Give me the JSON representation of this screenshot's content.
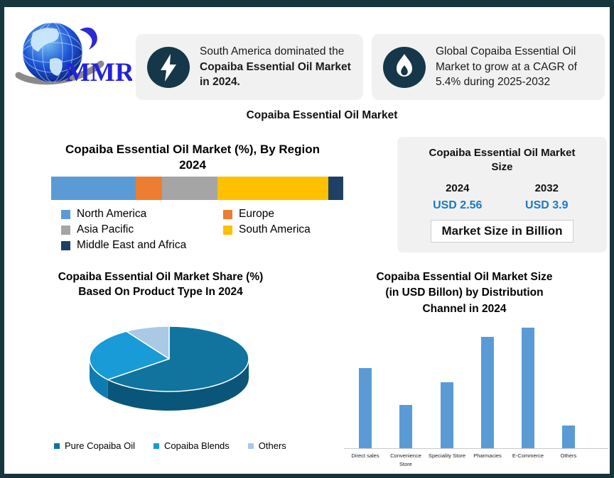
{
  "brand": {
    "name": "MMR"
  },
  "callouts": [
    {
      "icon": "lightning-icon",
      "text_regular": "South America dominated the ",
      "text_bold": "Copaiba Essential Oil Market in 2024."
    },
    {
      "icon": "flame-icon",
      "text": "Global Copaiba Essential Oil Market to grow at a CAGR of 5.4% during 2025-2032"
    }
  ],
  "main_title": "Copaiba Essential Oil Market",
  "market_size_panel": {
    "title_line1": "Copaiba Essential Oil Market",
    "title_line2": "Size",
    "col1_year": "2024",
    "col2_year": "2032",
    "col1_value": "USD 2.56",
    "col2_value": "USD 3.9",
    "note": "Market Size in Billion",
    "value_color": "#1b7ac1"
  },
  "section_titles": {
    "region": [
      "Copaiba Essential Oil Market (%), By Region",
      "2024"
    ],
    "pie": [
      "Copaiba Essential Oil Market Share (%)",
      "Based On Product Type In 2024"
    ],
    "bar": [
      "Copaiba Essential Oil Market Size",
      "(in USD Billon)  by Distribution",
      "Channel in 2024"
    ]
  },
  "chart_data": [
    {
      "type": "stacked-bar-horizontal",
      "title": "Copaiba Essential Oil Market (%), By Region 2024",
      "unit": "%",
      "segments": [
        {
          "label": "North America",
          "value": 29,
          "color": "#5B9BD5"
        },
        {
          "label": "Europe",
          "value": 9,
          "color": "#ED7D31"
        },
        {
          "label": "Asia Pacific",
          "value": 19,
          "color": "#A5A5A5"
        },
        {
          "label": "South America",
          "value": 38,
          "color": "#FFC000"
        },
        {
          "label": "Middle East and Africa",
          "value": 5,
          "color": "#1F4064"
        }
      ]
    },
    {
      "type": "pie",
      "style": "3d",
      "title": "Copaiba Essential Oil Market Share (%) Based On Product Type In 2024",
      "start_angle_deg": 0,
      "direction": "clockwise",
      "slices": [
        {
          "label": "Pure Copaiba Oil",
          "value": 64,
          "color": "#10749F",
          "side_color": "#0A567A"
        },
        {
          "label": "Copaiba Blends",
          "value": 27,
          "color": "#189BD7",
          "side_color": "#0F7BB0"
        },
        {
          "label": "Others",
          "value": 9,
          "color": "#A9C9E5",
          "side_color": "#84A8C8"
        }
      ]
    },
    {
      "type": "bar",
      "title": "Copaiba Essential Oil Market Size (in USD Billon)  by Distribution Channel in 2024",
      "categories": [
        "Direct sales",
        "Convenience Store",
        "Speciality Store",
        "Pharmacies",
        "E-Commerce",
        "Others"
      ],
      "values": [
        0.46,
        0.25,
        0.38,
        0.64,
        0.69,
        0.13
      ],
      "bar_color": "#5B9BD5",
      "ylim": [
        0,
        0.72
      ],
      "axis": "baseline-only",
      "grid": false
    }
  ]
}
